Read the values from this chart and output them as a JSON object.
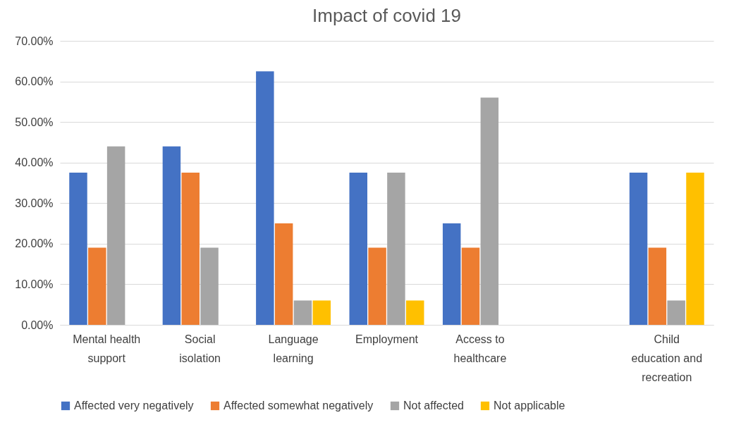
{
  "chart_data": {
    "type": "bar",
    "title": "Impact of covid 19",
    "categories": [
      "Mental health support",
      "Social isolation",
      "Language learning",
      "Employment",
      "Access to healthcare",
      null,
      "Child education and recreation"
    ],
    "series": [
      {
        "name": "Affected very negatively",
        "color": "#4472c4",
        "values": [
          37.5,
          44,
          62.5,
          37.5,
          25,
          null,
          37.5
        ]
      },
      {
        "name": "Affected somewhat negatively",
        "color": "#ed7d31",
        "values": [
          19,
          37.5,
          25,
          19,
          19,
          null,
          19
        ]
      },
      {
        "name": "Not affected",
        "color": "#a5a5a5",
        "values": [
          44,
          19,
          6,
          37.5,
          56,
          null,
          6
        ]
      },
      {
        "name": "Not applicable",
        "color": "#ffc000",
        "values": [
          null,
          null,
          6,
          6,
          null,
          null,
          37.5
        ]
      }
    ],
    "ylim": [
      0,
      70
    ],
    "yticks": [
      {
        "value": 0,
        "label": "0.00%"
      },
      {
        "value": 10,
        "label": "10.00%"
      },
      {
        "value": 20,
        "label": "20.00%"
      },
      {
        "value": 30,
        "label": "30.00%"
      },
      {
        "value": 40,
        "label": "40.00%"
      },
      {
        "value": 50,
        "label": "50.00%"
      },
      {
        "value": 60,
        "label": "60.00%"
      },
      {
        "value": 70,
        "label": "70.00%"
      }
    ],
    "grid": "y",
    "legend": "bottom"
  }
}
